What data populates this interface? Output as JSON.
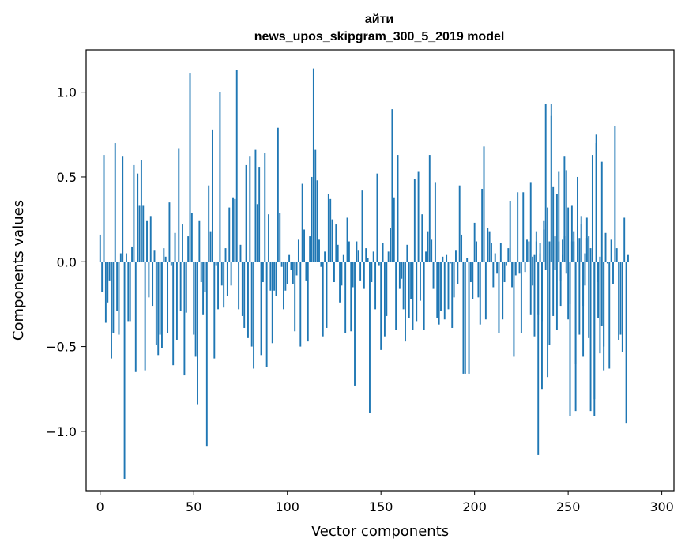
{
  "chart_data": {
    "type": "bar",
    "title": "айти",
    "subtitle": "news_upos_skipgram_300_5_2019 model",
    "xlabel": "Vector components",
    "ylabel": "Components values",
    "xlim": [
      -7.5,
      306.5
    ],
    "ylim": [
      -1.35,
      1.25
    ],
    "xticks": [
      0,
      50,
      100,
      150,
      200,
      250,
      300
    ],
    "xtick_labels": [
      "0",
      "50",
      "100",
      "150",
      "200",
      "250",
      "300"
    ],
    "yticks": [
      -1.0,
      -0.5,
      0.0,
      0.5,
      1.0
    ],
    "ytick_labels": [
      "−1.0",
      "−0.5",
      "0.0",
      "0.5",
      "1.0"
    ],
    "grid": false,
    "legend": "none",
    "bar_color": "#1f77b4",
    "series": [
      {
        "x_start": 0,
        "values": [
          0.16,
          -0.18,
          0.63,
          -0.36,
          -0.24,
          -0.11,
          -0.57,
          -0.42,
          0.7,
          -0.29,
          -0.43,
          0.05,
          0.62,
          -1.28,
          0.05,
          -0.35,
          -0.35,
          0.09,
          0.57,
          -0.65,
          0.52,
          0.33,
          0.6,
          0.33,
          -0.64,
          0.24,
          -0.21,
          0.27,
          -0.26,
          0.07,
          -0.49,
          -0.55,
          -0.43,
          -0.51,
          0.08,
          0.03,
          -0.42,
          0.35,
          -0.02,
          -0.61,
          0.17,
          -0.46,
          0.67,
          -0.29,
          0.22,
          -0.67,
          -0.3,
          0.15,
          1.11,
          0.29,
          -0.43,
          -0.56,
          -0.84,
          0.24,
          -0.12,
          -0.31,
          -0.18,
          -1.09,
          0.45,
          0.18,
          0.78,
          -0.57,
          -0.02,
          -0.28,
          1.0,
          -0.14,
          -0.27,
          0.08,
          -0.2,
          0.32,
          -0.14,
          0.38,
          0.37,
          1.13,
          -0.28,
          0.1,
          -0.32,
          -0.39,
          0.57,
          -0.45,
          0.62,
          -0.5,
          -0.63,
          0.66,
          0.34,
          0.56,
          -0.55,
          -0.12,
          0.64,
          -0.62,
          0.28,
          -0.17,
          -0.48,
          -0.17,
          -0.2,
          0.79,
          0.29,
          -0.03,
          -0.28,
          -0.17,
          -0.13,
          0.04,
          -0.05,
          -0.13,
          -0.41,
          -0.08,
          0.13,
          -0.5,
          0.46,
          0.19,
          -0.11,
          -0.47,
          0.15,
          0.5,
          1.14,
          0.66,
          0.48,
          0.13,
          -0.03,
          -0.44,
          0.06,
          -0.39,
          0.4,
          0.37,
          0.25,
          -0.12,
          0.22,
          0.1,
          -0.24,
          -0.14,
          0.04,
          -0.42,
          0.26,
          0.12,
          -0.41,
          -0.15,
          -0.73,
          0.12,
          0.07,
          -0.11,
          0.42,
          -0.16,
          0.08,
          0.02,
          -0.89,
          -0.12,
          0.06,
          -0.28,
          0.52,
          -0.02,
          -0.52,
          0.11,
          -0.44,
          -0.32,
          0.06,
          0.2,
          0.9,
          0.38,
          -0.4,
          0.63,
          -0.16,
          -0.1,
          -0.28,
          -0.47,
          0.1,
          -0.33,
          -0.22,
          -0.4,
          0.49,
          -0.35,
          0.53,
          -0.23,
          0.28,
          -0.4,
          0.06,
          0.18,
          0.63,
          0.13,
          -0.16,
          0.47,
          -0.33,
          -0.37,
          -0.29,
          0.03,
          -0.34,
          0.04,
          -0.28,
          -0.01,
          -0.39,
          -0.21,
          0.07,
          -0.13,
          0.45,
          0.16,
          -0.66,
          -0.66,
          0.02,
          -0.66,
          -0.12,
          -0.22,
          0.23,
          0.12,
          -0.21,
          -0.37,
          0.43,
          0.68,
          -0.34,
          0.2,
          0.18,
          0.11,
          -0.15,
          0.05,
          -0.07,
          -0.42,
          0.11,
          -0.34,
          -0.12,
          -0.02,
          0.08,
          0.36,
          -0.15,
          -0.56,
          -0.08,
          0.41,
          -0.07,
          -0.42,
          0.41,
          -0.06,
          0.13,
          0.12,
          0.47,
          -0.14,
          0.04,
          0.12,
          -0.31,
          0.05,
          -0.35,
          0.19,
          -0.05,
          0.32,
          0.12,
          0.86,
          0.44,
          -0.05,
          0.4,
          0.53,
          -0.26,
          0.13,
          0.15,
          0.54,
          -0.34,
          -0.25,
          0.33,
          0.12,
          -0.6,
          0.21,
          -0.43,
          0.27,
          -0.26,
          -0.14,
          0.14,
          -0.45,
          0.08,
          0.02,
          -0.91,
          0.7,
          -0.33,
          -0.54,
          -0.38,
          -0.5
        ]
      },
      {
        "x_start": 230,
        "values": [
          -0.31,
          0.03,
          -0.44,
          0.18,
          -1.14,
          0.11,
          -0.75,
          0.24,
          0.93,
          -0.68,
          -0.49,
          0.93,
          -0.32,
          0.15,
          -0.4,
          0.12,
          -0.11,
          0.04,
          0.62,
          -0.07,
          0.32,
          -0.91,
          0.12,
          0.18,
          -0.88,
          0.5,
          0.14,
          0.22,
          -0.56,
          0.05,
          0.26,
          0.15,
          -0.88,
          0.63,
          -0.81,
          0.75,
          -0.12,
          0.03,
          0.59,
          -0.64,
          0.17,
          -0.01,
          -0.63,
          0.13,
          -0.13,
          0.8,
          0.08,
          -0.46,
          -0.43,
          -0.53,
          0.26,
          -0.95,
          0.04
        ]
      }
    ]
  }
}
